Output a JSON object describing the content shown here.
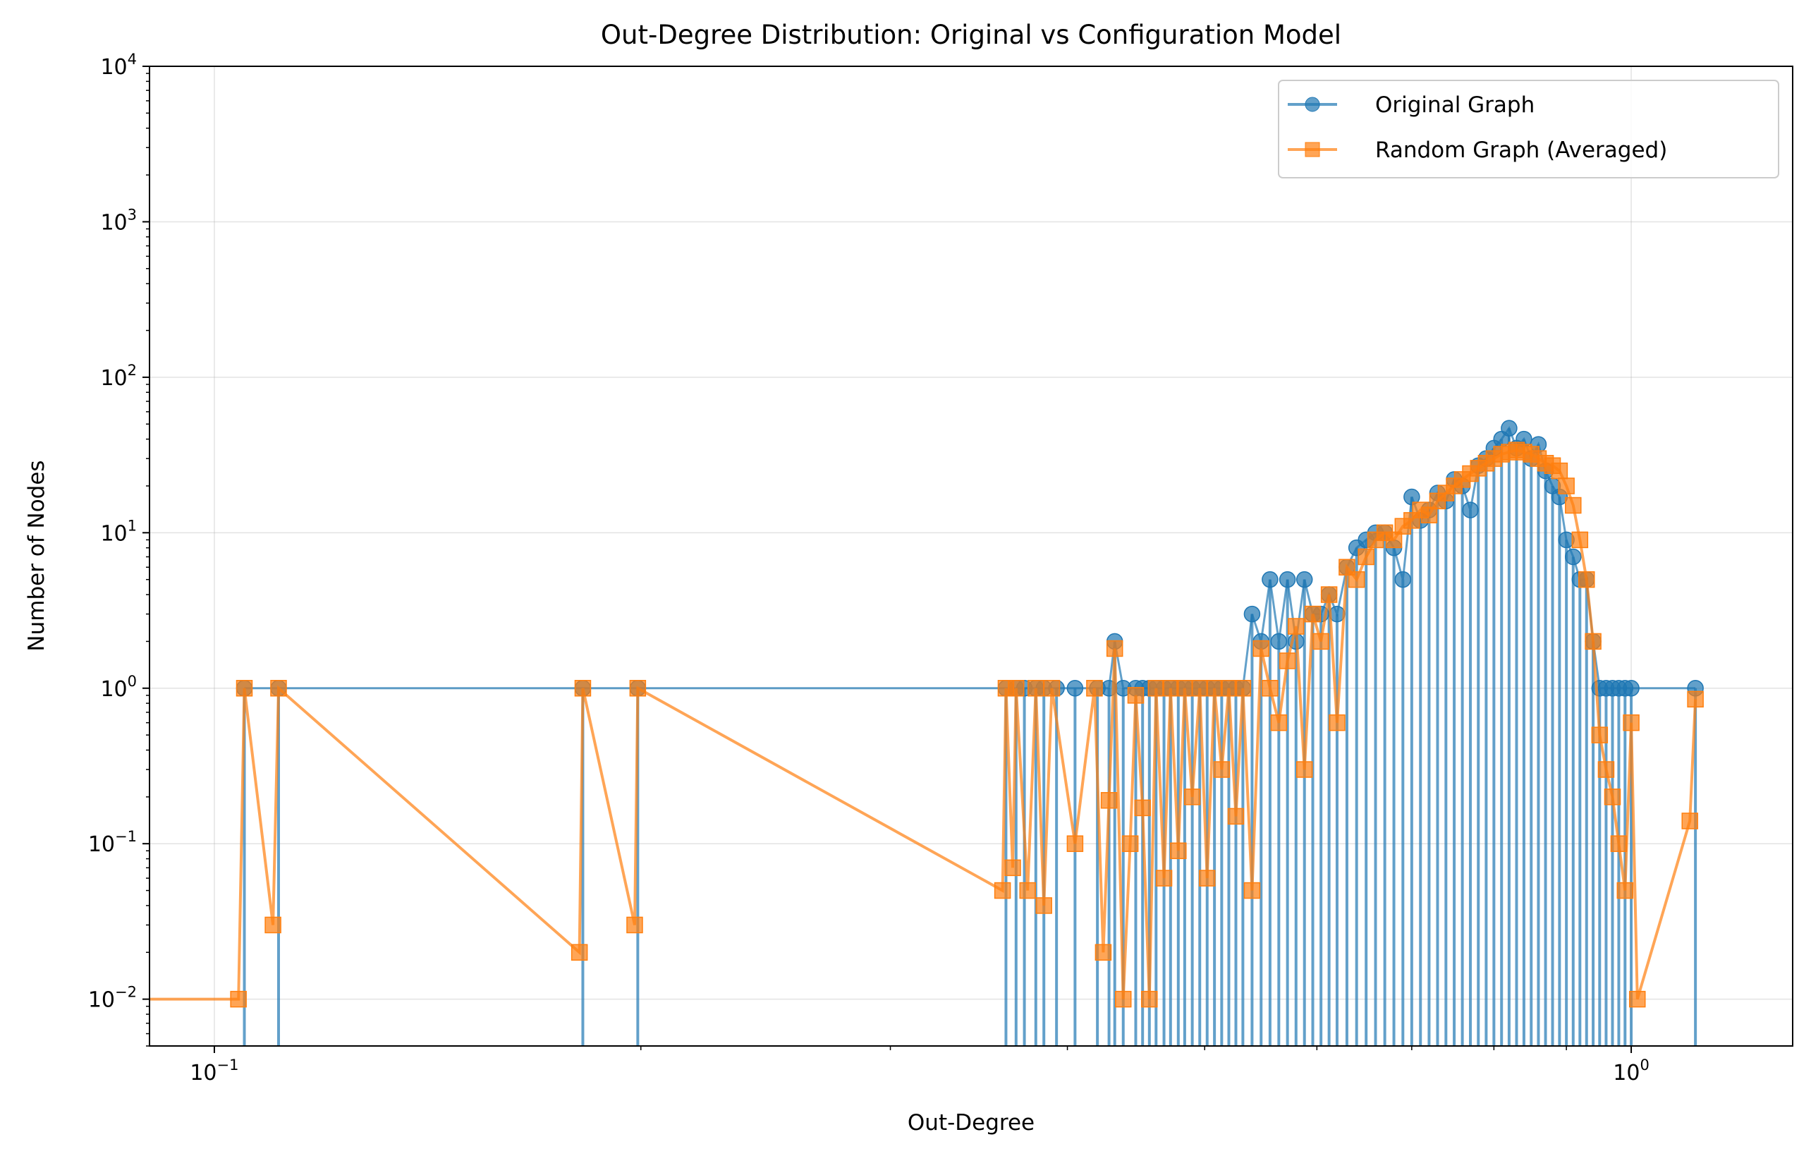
{
  "chart_data": {
    "type": "line",
    "title": "Out-Degree Distribution: Original vs Configuration Model",
    "xlabel": "Out-Degree",
    "ylabel": "Number of Nodes",
    "xscale": "log",
    "yscale": "log",
    "xlim": [
      0.09,
      1.3
    ],
    "ylim": [
      0.005,
      10000
    ],
    "grid": true,
    "legend_position": "upper right",
    "x_ticks": [
      {
        "base": "10",
        "exp": "−1"
      },
      {
        "base": "10",
        "exp": "0"
      }
    ],
    "y_ticks": [
      {
        "base": "10",
        "exp": "−2"
      },
      {
        "base": "10",
        "exp": "−1"
      },
      {
        "base": "10",
        "exp": "0"
      },
      {
        "base": "10",
        "exp": "1"
      },
      {
        "base": "10",
        "exp": "2"
      },
      {
        "base": "10",
        "exp": "3"
      },
      {
        "base": "10",
        "exp": "4"
      }
    ],
    "series": [
      {
        "name": "Original Graph",
        "color": "#1f77b4",
        "marker": "circle",
        "style": "stem",
        "x": [
          0.105,
          0.111,
          0.182,
          0.199,
          0.362,
          0.368,
          0.373,
          0.38,
          0.385,
          0.393,
          0.405,
          0.42,
          0.428,
          0.432,
          0.438,
          0.447,
          0.452,
          0.457,
          0.462,
          0.468,
          0.473,
          0.479,
          0.484,
          0.49,
          0.496,
          0.502,
          0.508,
          0.514,
          0.52,
          0.526,
          0.532,
          0.54,
          0.548,
          0.556,
          0.564,
          0.572,
          0.58,
          0.588,
          0.596,
          0.604,
          0.612,
          0.62,
          0.63,
          0.64,
          0.65,
          0.66,
          0.67,
          0.68,
          0.69,
          0.7,
          0.71,
          0.72,
          0.73,
          0.74,
          0.75,
          0.76,
          0.77,
          0.78,
          0.79,
          0.8,
          0.81,
          0.82,
          0.83,
          0.84,
          0.85,
          0.86,
          0.87,
          0.88,
          0.89,
          0.9,
          0.91,
          0.92,
          0.93,
          0.94,
          0.95,
          0.96,
          0.97,
          0.98,
          0.99,
          1.0,
          1.11
        ],
        "y": [
          1,
          1,
          1,
          1,
          1,
          1,
          1,
          1,
          1,
          1,
          1,
          1,
          1,
          2,
          1,
          1,
          1,
          1,
          1,
          1,
          1,
          1,
          1,
          1,
          1,
          1,
          1,
          1,
          1,
          1,
          1,
          3,
          2,
          5,
          2,
          5,
          2,
          5,
          3,
          3,
          4,
          3,
          6,
          8,
          9,
          10,
          10,
          8,
          5,
          17,
          12,
          14,
          18,
          16,
          22,
          20,
          14,
          27,
          30,
          35,
          40,
          47,
          35,
          40,
          30,
          37,
          25,
          20,
          17,
          9,
          7,
          5,
          5,
          2,
          1,
          1,
          1,
          1,
          1,
          1,
          1
        ]
      },
      {
        "name": "Random Graph (Averaged)",
        "color": "#ff7f0e",
        "marker": "square",
        "style": "line",
        "x": [
          0.09,
          0.104,
          0.105,
          0.11,
          0.111,
          0.181,
          0.182,
          0.198,
          0.199,
          0.36,
          0.362,
          0.366,
          0.368,
          0.375,
          0.38,
          0.385,
          0.39,
          0.405,
          0.418,
          0.424,
          0.428,
          0.432,
          0.438,
          0.443,
          0.447,
          0.452,
          0.457,
          0.462,
          0.468,
          0.473,
          0.479,
          0.484,
          0.49,
          0.496,
          0.502,
          0.508,
          0.514,
          0.52,
          0.526,
          0.532,
          0.54,
          0.548,
          0.556,
          0.564,
          0.572,
          0.58,
          0.588,
          0.596,
          0.604,
          0.612,
          0.62,
          0.63,
          0.64,
          0.65,
          0.66,
          0.67,
          0.68,
          0.69,
          0.7,
          0.71,
          0.72,
          0.73,
          0.74,
          0.75,
          0.76,
          0.77,
          0.78,
          0.79,
          0.8,
          0.81,
          0.82,
          0.83,
          0.84,
          0.85,
          0.86,
          0.87,
          0.88,
          0.89,
          0.9,
          0.91,
          0.92,
          0.93,
          0.94,
          0.95,
          0.96,
          0.97,
          0.98,
          0.99,
          1.0,
          1.01,
          1.1,
          1.11
        ],
        "y": [
          0.01,
          0.01,
          1,
          0.03,
          1,
          0.02,
          1,
          0.03,
          1,
          0.05,
          1,
          0.07,
          1,
          0.05,
          1,
          0.04,
          1,
          0.1,
          1,
          0.02,
          0.19,
          1.8,
          0.01,
          0.1,
          0.9,
          0.17,
          0.01,
          1,
          0.06,
          1,
          0.09,
          1,
          0.2,
          1,
          0.06,
          1,
          0.3,
          1,
          0.15,
          1,
          0.05,
          1.8,
          1,
          0.6,
          1.5,
          2.5,
          0.3,
          3,
          2,
          4,
          0.6,
          6,
          5,
          7,
          9,
          10,
          9,
          11,
          12,
          14,
          13,
          16,
          18,
          20,
          22,
          24,
          26,
          28,
          30,
          32,
          33,
          34,
          33,
          32,
          30,
          28,
          27,
          25,
          20,
          15,
          9,
          5,
          2,
          0.5,
          0.3,
          0.2,
          0.1,
          0.05,
          0.6,
          0.01,
          0.14,
          0.85
        ]
      }
    ]
  }
}
